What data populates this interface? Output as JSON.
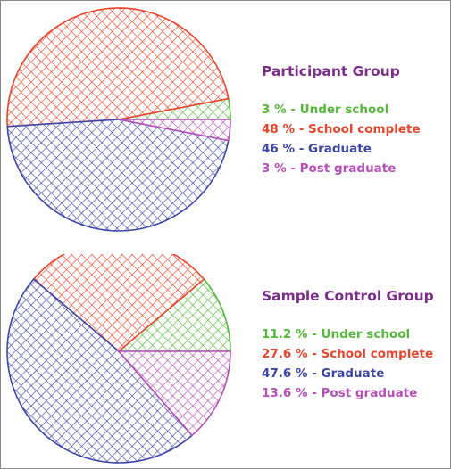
{
  "chart_data": [
    {
      "type": "pie",
      "title": "Participant Group",
      "series": [
        {
          "name": "Under school",
          "value": 3,
          "label": "3 % - Under school",
          "color": "#55b83a"
        },
        {
          "name": "School complete",
          "value": 48,
          "label": "48 % - School complete",
          "color": "#e8432a"
        },
        {
          "name": "Graduate",
          "value": 46,
          "label": "46 % - Graduate",
          "color": "#3c46a8"
        },
        {
          "name": "Post graduate",
          "value": 3,
          "label": "3 % - Post graduate",
          "color": "#b44fb7"
        }
      ]
    },
    {
      "type": "pie",
      "title": "Sample Control Group",
      "series": [
        {
          "name": "Under school",
          "value": 11.2,
          "label": "11.2 % - Under school",
          "color": "#55b83a"
        },
        {
          "name": "School complete",
          "value": 27.6,
          "label": "27.6 % - School complete",
          "color": "#e8432a"
        },
        {
          "name": "Graduate",
          "value": 47.6,
          "label": "47.6 % - Graduate",
          "color": "#3c46a8"
        },
        {
          "name": "Post graduate",
          "value": 13.6,
          "label": "13.6 % - Post graduate",
          "color": "#b44fb7"
        }
      ]
    }
  ]
}
